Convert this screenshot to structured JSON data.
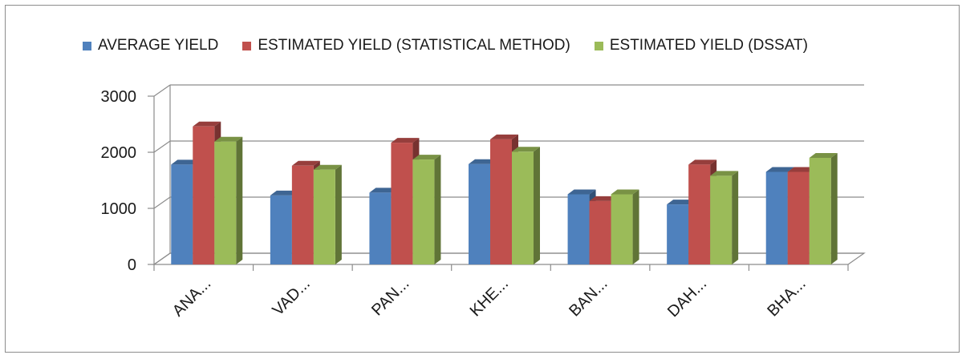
{
  "chart_data": {
    "type": "bar",
    "title": "",
    "xlabel": "",
    "ylabel": "",
    "categories": [
      "ANA...",
      "VAD...",
      "PAN...",
      "KHE...",
      "BAN...",
      "DAH...",
      "BHA..."
    ],
    "series": [
      {
        "name": "AVERAGE YIELD",
        "color": "#4f81bd",
        "values": [
          1780,
          1230,
          1280,
          1790,
          1250,
          1070,
          1650
        ]
      },
      {
        "name": "ESTIMATED YIELD (STATISTICAL METHOD)",
        "color": "#c0504d",
        "values": [
          2460,
          1760,
          2170,
          2230,
          1130,
          1780,
          1650
        ]
      },
      {
        "name": "ESTIMATED YIELD (DSSAT)",
        "color": "#9bbb59",
        "values": [
          2190,
          1690,
          1870,
          2010,
          1250,
          1580,
          1900
        ]
      }
    ],
    "yticks": [
      0,
      1000,
      2000,
      3000
    ],
    "ylim": [
      0,
      3000
    ],
    "grid": true,
    "legend_position": "top",
    "style": "3d-clustered-column"
  }
}
